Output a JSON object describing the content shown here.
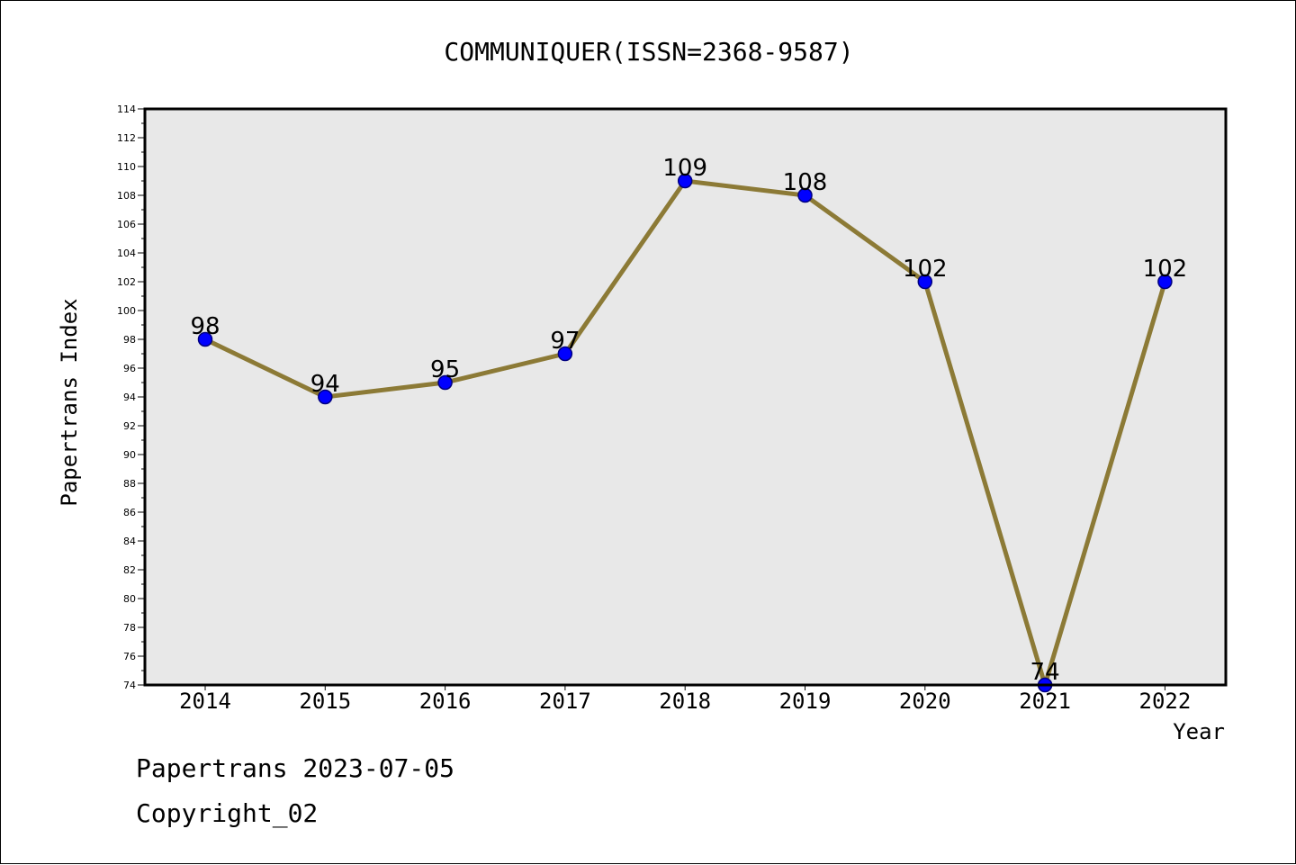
{
  "chart_data": {
    "type": "line",
    "title": "COMMUNIQUER(ISSN=2368-9587)",
    "xlabel": "Year",
    "ylabel": "Papertrans Index",
    "categories": [
      "2014",
      "2015",
      "2016",
      "2017",
      "2018",
      "2019",
      "2020",
      "2021",
      "2022"
    ],
    "series": [
      {
        "values": [
          98,
          94,
          95,
          97,
          109,
          108,
          102,
          74,
          102
        ],
        "data_labels": [
          "98",
          "94",
          "95",
          "97",
          "109",
          "108",
          "102",
          "74",
          "102"
        ]
      }
    ],
    "ylim": [
      74,
      114
    ],
    "yticks": [
      "74",
      "76",
      "78",
      "80",
      "82",
      "84",
      "86",
      "88",
      "90",
      "92",
      "94",
      "96",
      "98",
      "100",
      "102",
      "104",
      "106",
      "108",
      "110",
      "112",
      "114"
    ],
    "grid": false,
    "legend": "none",
    "colors": {
      "plot_background": "#e8e8e8",
      "line": "#8c7a36",
      "marker_fill": "#0000ff",
      "marker_stroke": "#000080",
      "frame": "#000000"
    }
  },
  "footer": {
    "line1": "Papertrans 2023-07-05",
    "line2": "Copyright_02"
  }
}
